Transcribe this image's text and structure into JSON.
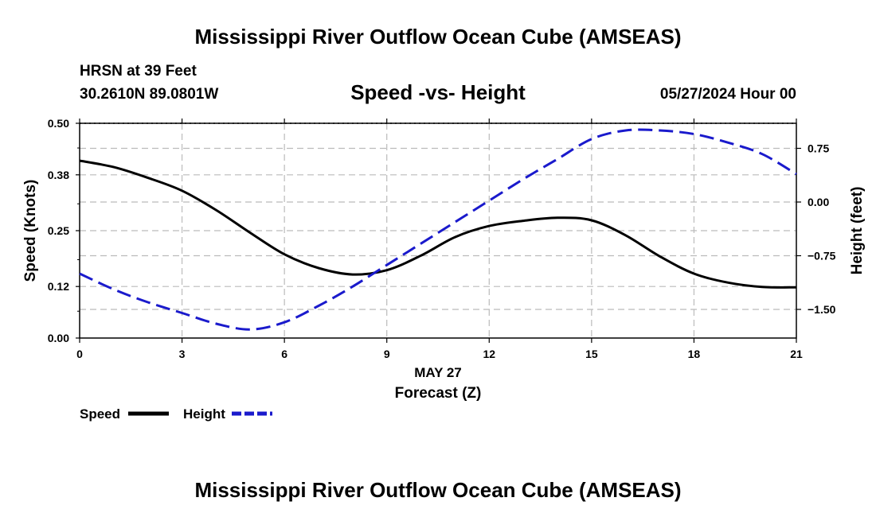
{
  "title": "Mississippi River Outflow Ocean Cube (AMSEAS)",
  "footer_title": "Mississippi River Outflow Ocean Cube (AMSEAS)",
  "station": {
    "name": "HRSN at 39 Feet",
    "coords": "30.2610N  89.0801W"
  },
  "subtitle": "Speed -vs- Height",
  "datetime": "05/27/2024 Hour 00",
  "colors": {
    "speed": "#000000",
    "height": "#1a1acc",
    "grid": "#bbbbbb"
  },
  "chart_data": {
    "type": "line",
    "x_ticks": [
      "0",
      "3",
      "6",
      "9",
      "12",
      "15",
      "18",
      "21"
    ],
    "xlim": [
      0,
      21
    ],
    "date_label": "MAY 27",
    "xlabel": "Forecast (Z)",
    "y_left": {
      "label": "Speed (Knots)",
      "ticks": [
        "0.00",
        "0.12",
        "0.25",
        "0.38",
        "0.50"
      ],
      "lim": [
        0,
        0.5
      ]
    },
    "y_right": {
      "label": "Height (feet)",
      "ticks": [
        "0.75",
        "0.00",
        "−0.75",
        "−1.50"
      ],
      "tick_values": [
        0.75,
        0,
        -0.75,
        -1.5
      ],
      "lim": [
        -1.9,
        1.1
      ]
    },
    "series": [
      {
        "name": "Speed",
        "axis": "left",
        "style": "solid",
        "x": [
          0,
          1,
          2,
          3,
          4,
          5,
          6,
          7,
          8,
          9,
          10,
          11,
          12,
          13,
          14,
          15,
          16,
          17,
          18,
          19,
          20,
          21
        ],
        "values": [
          0.413,
          0.398,
          0.373,
          0.343,
          0.298,
          0.245,
          0.195,
          0.163,
          0.148,
          0.158,
          0.192,
          0.235,
          0.261,
          0.273,
          0.28,
          0.274,
          0.239,
          0.19,
          0.15,
          0.129,
          0.119,
          0.118
        ]
      },
      {
        "name": "Height",
        "axis": "right",
        "style": "dashed",
        "x": [
          0,
          1,
          2,
          3,
          4,
          5,
          6,
          7,
          8,
          9,
          10,
          11,
          12,
          13,
          14,
          15,
          16,
          17,
          18,
          19,
          20,
          21
        ],
        "values": [
          -1.0,
          -1.22,
          -1.4,
          -1.55,
          -1.7,
          -1.78,
          -1.68,
          -1.45,
          -1.18,
          -0.88,
          -0.58,
          -0.28,
          0.02,
          0.32,
          0.6,
          0.88,
          1.0,
          1.0,
          0.95,
          0.83,
          0.67,
          0.39
        ]
      }
    ]
  },
  "legend": {
    "speed_label": "Speed",
    "height_label": "Height"
  }
}
